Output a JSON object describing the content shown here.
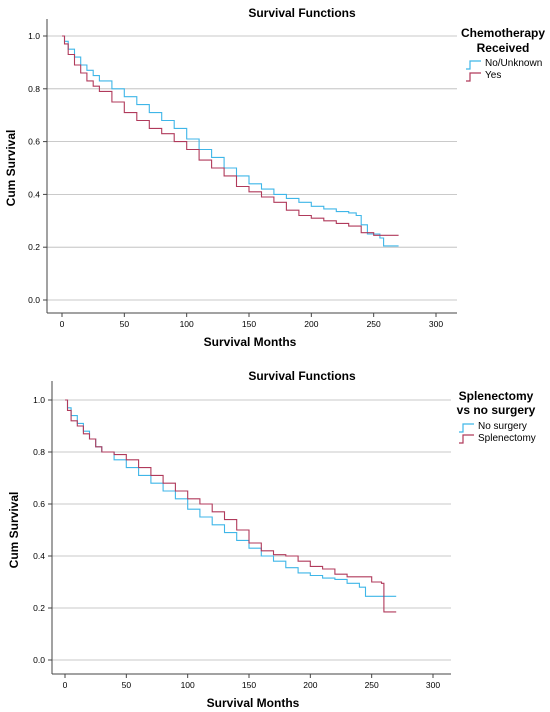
{
  "chart_data": [
    {
      "type": "line",
      "step": true,
      "title": "Survival Functions",
      "xlabel": "Survival Months",
      "ylabel": "Cum Survival",
      "xlim": [
        0,
        300
      ],
      "ylim": [
        0,
        1
      ],
      "xticks": [
        0,
        50,
        100,
        150,
        200,
        250,
        300
      ],
      "yticks": [
        0.0,
        0.2,
        0.4,
        0.6,
        0.8,
        1.0
      ],
      "ytick_labels": [
        "0.0",
        "0.2",
        "0.4",
        "0.6",
        "0.8",
        "1.0"
      ],
      "grid": "horizontal",
      "legend": {
        "title_lines": [
          "Chemotherapy",
          "Received"
        ],
        "position": "right"
      },
      "series": [
        {
          "name": "No/Unknown",
          "color": "#3fb6e8",
          "x": [
            0,
            2,
            5,
            10,
            15,
            20,
            25,
            30,
            40,
            50,
            60,
            70,
            80,
            90,
            100,
            110,
            120,
            130,
            140,
            150,
            160,
            170,
            180,
            190,
            200,
            210,
            220,
            230,
            236,
            240,
            245,
            250,
            255,
            258,
            260,
            270
          ],
          "y": [
            1.0,
            0.98,
            0.95,
            0.92,
            0.89,
            0.87,
            0.85,
            0.83,
            0.8,
            0.77,
            0.74,
            0.71,
            0.68,
            0.65,
            0.61,
            0.57,
            0.54,
            0.5,
            0.47,
            0.44,
            0.42,
            0.4,
            0.385,
            0.37,
            0.355,
            0.345,
            0.335,
            0.33,
            0.32,
            0.285,
            0.25,
            0.25,
            0.235,
            0.205,
            0.205,
            0.205
          ]
        },
        {
          "name": "Yes",
          "color": "#b03a5b",
          "x": [
            0,
            2,
            5,
            10,
            15,
            20,
            25,
            30,
            40,
            50,
            60,
            70,
            80,
            90,
            100,
            110,
            120,
            130,
            140,
            150,
            160,
            170,
            180,
            190,
            200,
            210,
            220,
            230,
            240,
            250,
            260,
            270
          ],
          "y": [
            1.0,
            0.97,
            0.93,
            0.89,
            0.86,
            0.83,
            0.81,
            0.79,
            0.75,
            0.71,
            0.68,
            0.65,
            0.63,
            0.6,
            0.57,
            0.53,
            0.5,
            0.47,
            0.43,
            0.41,
            0.39,
            0.37,
            0.34,
            0.32,
            0.31,
            0.3,
            0.29,
            0.28,
            0.255,
            0.245,
            0.245,
            0.245
          ]
        }
      ]
    },
    {
      "type": "line",
      "step": true,
      "title": "Survival Functions",
      "xlabel": "Survival Months",
      "ylabel": "Cum Survival",
      "xlim": [
        0,
        300
      ],
      "ylim": [
        0,
        1
      ],
      "xticks": [
        0,
        50,
        100,
        150,
        200,
        250,
        300
      ],
      "yticks": [
        0.0,
        0.2,
        0.4,
        0.6,
        0.8,
        1.0
      ],
      "ytick_labels": [
        "0.0",
        "0.2",
        "0.4",
        "0.6",
        "0.8",
        "1.0"
      ],
      "grid": "horizontal",
      "legend": {
        "title_lines": [
          "Splenectomy",
          "vs no surgery"
        ],
        "position": "right"
      },
      "series": [
        {
          "name": "No surgery",
          "color": "#3fb6e8",
          "x": [
            0,
            2,
            5,
            10,
            15,
            20,
            25,
            30,
            40,
            50,
            60,
            70,
            80,
            90,
            100,
            110,
            120,
            130,
            140,
            150,
            160,
            170,
            180,
            190,
            200,
            210,
            220,
            230,
            240,
            245,
            250,
            260,
            270
          ],
          "y": [
            1.0,
            0.97,
            0.94,
            0.91,
            0.88,
            0.85,
            0.82,
            0.8,
            0.77,
            0.74,
            0.71,
            0.68,
            0.65,
            0.62,
            0.58,
            0.55,
            0.52,
            0.49,
            0.46,
            0.43,
            0.4,
            0.38,
            0.355,
            0.335,
            0.325,
            0.315,
            0.31,
            0.295,
            0.28,
            0.245,
            0.245,
            0.245,
            0.245
          ]
        },
        {
          "name": "Splenectomy",
          "color": "#b03a5b",
          "x": [
            0,
            2,
            5,
            10,
            15,
            20,
            25,
            30,
            40,
            50,
            60,
            70,
            80,
            90,
            100,
            110,
            120,
            130,
            140,
            150,
            160,
            170,
            180,
            190,
            200,
            210,
            220,
            230,
            240,
            250,
            258,
            260,
            270
          ],
          "y": [
            1.0,
            0.96,
            0.92,
            0.9,
            0.87,
            0.85,
            0.82,
            0.8,
            0.79,
            0.77,
            0.74,
            0.71,
            0.68,
            0.65,
            0.62,
            0.6,
            0.57,
            0.54,
            0.5,
            0.45,
            0.42,
            0.405,
            0.4,
            0.38,
            0.36,
            0.35,
            0.33,
            0.32,
            0.32,
            0.3,
            0.295,
            0.185,
            0.185
          ]
        }
      ]
    }
  ]
}
